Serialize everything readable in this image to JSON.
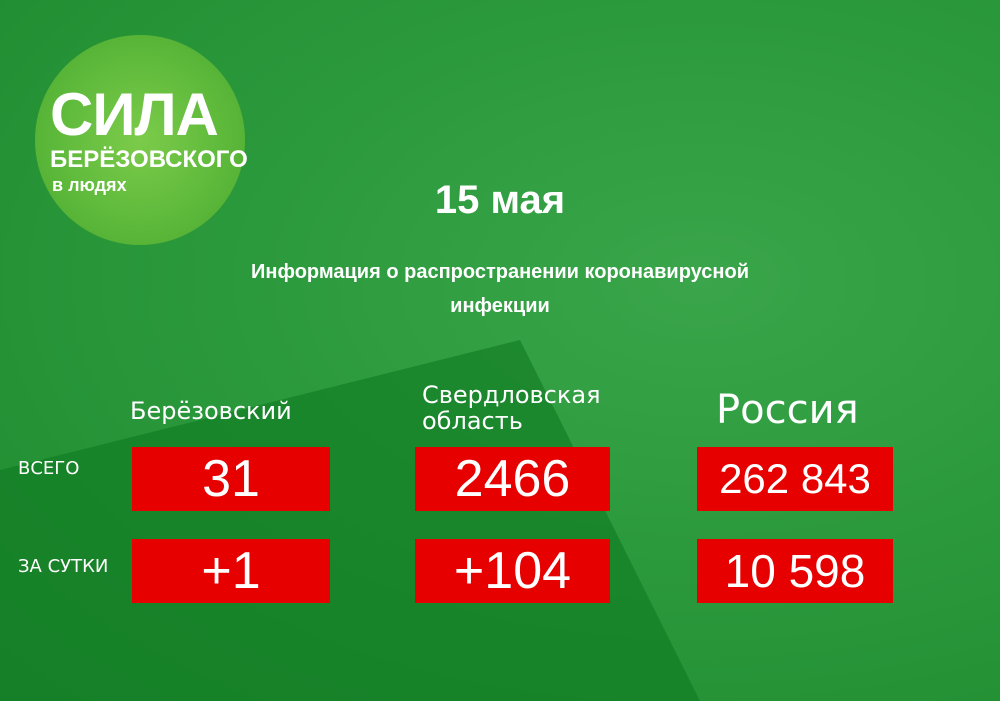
{
  "logo": {
    "title": "СИЛА",
    "subtitle": "БЕРЁЗОВСКОГО",
    "tagline": "в людях"
  },
  "header": {
    "date": "15 мая",
    "title": "Информация о распространении коронавирусной инфекции"
  },
  "table": {
    "columns": [
      "Берёзовский",
      "Свердловская область",
      "Россия"
    ],
    "rows": [
      {
        "label": "ВСЕГО",
        "cells": [
          "31",
          "2466",
          "262 843"
        ]
      },
      {
        "label": "ЗА СУТКИ",
        "cells": [
          "+1",
          "+104",
          "10 598"
        ]
      }
    ]
  }
}
